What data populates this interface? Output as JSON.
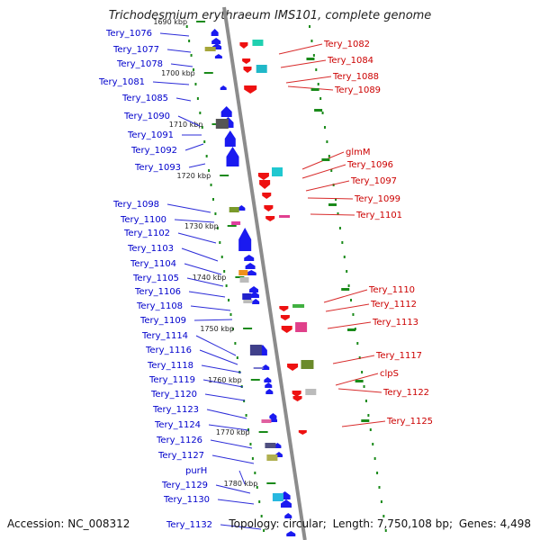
{
  "title": "Trichodesmium erythraeum IMS101, complete genome",
  "footer": {
    "accession": "Accession: NC_008312",
    "topology": "Topology: circular;",
    "length": "Length: 7,750,108 bp;",
    "genes": "Genes: 4,498"
  },
  "colors": {
    "forward_label": "#0000cc",
    "reverse_label": "#cc0000",
    "forward_feature": "#1a1af0",
    "reverse_feature": "#ee1111",
    "backbone": "#8c8c8c",
    "tick": "#1a8a1a"
  },
  "kbp_ticks": [
    "1690 kbp",
    "1700 kbp",
    "1710 kbp",
    "1720 kbp",
    "1730 kbp",
    "1740 kbp",
    "1750 kbp",
    "1760 kbp",
    "1770 kbp",
    "1780 kbp"
  ],
  "left_genes": [
    "Tery_1076",
    "Tery_1077",
    "Tery_1078",
    "Tery_1081",
    "Tery_1085",
    "Tery_1090",
    "Tery_1091",
    "Tery_1092",
    "Tery_1093",
    "Tery_1098",
    "Tery_1100",
    "Tery_1102",
    "Tery_1103",
    "Tery_1104",
    "Tery_1105",
    "Tery_1106",
    "Tery_1108",
    "Tery_1109",
    "Tery_1114",
    "Tery_1116",
    "Tery_1118",
    "Tery_1119",
    "Tery_1120",
    "Tery_1123",
    "Tery_1124",
    "Tery_1126",
    "Tery_1127",
    "purH",
    "Tery_1129",
    "Tery_1130",
    "Tery_1132"
  ],
  "right_genes": [
    "Tery_1082",
    "Tery_1084",
    "Tery_1088",
    "Tery_1089",
    "glmM",
    "Tery_1096",
    "Tery_1097",
    "Tery_1099",
    "Tery_1101",
    "Tery_1110",
    "Tery_1112",
    "Tery_1113",
    "Tery_1117",
    "clpS",
    "Tery_1122",
    "Tery_1125"
  ]
}
